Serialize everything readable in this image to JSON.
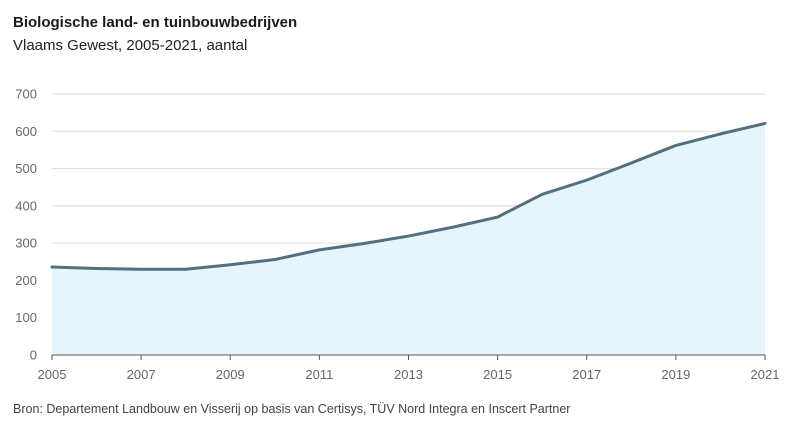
{
  "chart_data": {
    "type": "area",
    "title": "Biologische land- en tuinbouwbedrijven",
    "subtitle": "Vlaams Gewest, 2005-2021, aantal",
    "source": "Bron: Departement Landbouw en Visserij op basis van Certisys, TÜV Nord Integra en Inscert Partner",
    "x": [
      2005,
      2006,
      2007,
      2008,
      2009,
      2010,
      2011,
      2012,
      2013,
      2014,
      2015,
      2016,
      2017,
      2018,
      2019,
      2020,
      2021
    ],
    "series": [
      {
        "values": [
          236,
          232,
          230,
          230,
          242,
          256,
          282,
          299,
          319,
          343,
          370,
          431,
          469,
          515,
          562,
          593,
          621
        ]
      }
    ],
    "xticks": [
      "2005",
      "2007",
      "2009",
      "2011",
      "2013",
      "2015",
      "2017",
      "2019",
      "2021"
    ],
    "yticks": [
      "0",
      "100",
      "200",
      "300",
      "400",
      "500",
      "600",
      "700"
    ],
    "ylim": [
      0,
      700
    ],
    "xlim": [
      2005,
      2021
    ],
    "grid": true,
    "line_color": "#52707f",
    "fill_color": "#e6f4fb",
    "grid_color": "#dddddd"
  }
}
